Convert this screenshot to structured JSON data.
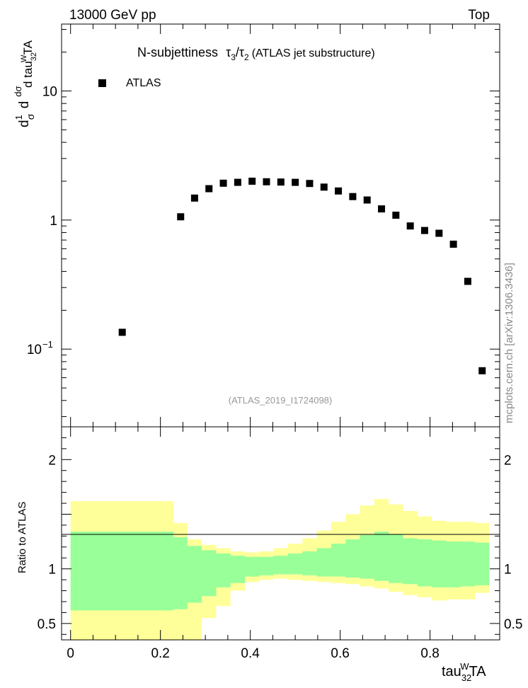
{
  "header": {
    "left": "13000 GeV pp",
    "right": "Top"
  },
  "side_label": "mcplots.cern.ch [arXiv:1306.3436]",
  "chart_data": [
    {
      "type": "scatter",
      "title": "N-subjettiness",
      "title_math": "τ3/τ2",
      "title_suffix": "(ATLAS jet substructure)",
      "analysis_id": "(ATLAS_2019_I1724098)",
      "ylabel": "1/σ dσ/d tau32WTA",
      "y_scale": "log",
      "ylim": [
        0.025,
        33
      ],
      "xlim": [
        -0.02,
        0.955
      ],
      "y_ticks": [
        {
          "value": 0.1,
          "label": "10",
          "exp": "−1"
        },
        {
          "value": 1,
          "label": "1"
        },
        {
          "value": 10,
          "label": "10"
        }
      ],
      "legend": {
        "position": "top-left",
        "entries": [
          "ATLAS"
        ]
      },
      "series": [
        {
          "name": "ATLAS",
          "marker": "square",
          "color": "#000000",
          "x": [
            0.115,
            0.245,
            0.276,
            0.308,
            0.34,
            0.372,
            0.404,
            0.436,
            0.468,
            0.5,
            0.532,
            0.564,
            0.596,
            0.628,
            0.66,
            0.692,
            0.724,
            0.756,
            0.788,
            0.82,
            0.852,
            0.884,
            0.916
          ],
          "y": [
            0.135,
            1.06,
            1.48,
            1.75,
            1.93,
            1.96,
            2.0,
            1.98,
            1.97,
            1.96,
            1.92,
            1.8,
            1.68,
            1.52,
            1.43,
            1.22,
            1.09,
            0.9,
            0.83,
            0.79,
            0.65,
            0.335,
            0.068
          ]
        }
      ]
    },
    {
      "type": "area",
      "ylabel": "Ratio to ATLAS",
      "ylim": [
        0.35,
        2.3
      ],
      "xlim": [
        -0.02,
        0.955
      ],
      "y_ticks": [
        {
          "value": 0.5,
          "label": "0.5"
        },
        {
          "value": 1,
          "label": "1"
        },
        {
          "value": 2,
          "label": "2"
        }
      ],
      "x_ticks": [
        {
          "value": 0,
          "label": "0"
        },
        {
          "value": 0.2,
          "label": "0.2"
        },
        {
          "value": 0.4,
          "label": "0.4"
        },
        {
          "value": 0.6,
          "label": "0.6"
        },
        {
          "value": 0.8,
          "label": "0.8"
        }
      ],
      "xlabel": "tau32WTA",
      "reference_line": 1,
      "bin_edges": [
        0.0,
        0.229,
        0.26,
        0.292,
        0.324,
        0.356,
        0.388,
        0.42,
        0.452,
        0.484,
        0.516,
        0.548,
        0.58,
        0.612,
        0.644,
        0.676,
        0.708,
        0.74,
        0.772,
        0.804,
        0.836,
        0.868,
        0.9,
        0.932
      ],
      "bands": [
        {
          "name": "outer",
          "color": "#ffff99",
          "upper": [
            1.62,
            1.42,
            1.27,
            1.22,
            1.19,
            1.16,
            1.15,
            1.16,
            1.19,
            1.23,
            1.28,
            1.35,
            1.43,
            1.5,
            1.58,
            1.64,
            1.59,
            1.53,
            1.48,
            1.44,
            1.43,
            1.43,
            1.42
          ],
          "lower": [
            0.0,
            0.0,
            0.0,
            0.55,
            0.66,
            0.8,
            0.88,
            0.9,
            0.91,
            0.9,
            0.89,
            0.88,
            0.87,
            0.86,
            0.84,
            0.82,
            0.79,
            0.76,
            0.74,
            0.71,
            0.72,
            0.72,
            0.78
          ]
        },
        {
          "name": "inner",
          "color": "#99ff99",
          "upper": [
            1.34,
            1.29,
            1.21,
            1.17,
            1.14,
            1.12,
            1.11,
            1.11,
            1.12,
            1.14,
            1.16,
            1.19,
            1.23,
            1.27,
            1.31,
            1.34,
            1.32,
            1.28,
            1.27,
            1.26,
            1.25,
            1.25,
            1.24
          ],
          "lower": [
            0.62,
            0.63,
            0.69,
            0.75,
            0.83,
            0.87,
            0.93,
            0.94,
            0.95,
            0.95,
            0.94,
            0.93,
            0.93,
            0.92,
            0.91,
            0.89,
            0.87,
            0.86,
            0.84,
            0.83,
            0.83,
            0.84,
            0.85
          ]
        }
      ]
    }
  ]
}
